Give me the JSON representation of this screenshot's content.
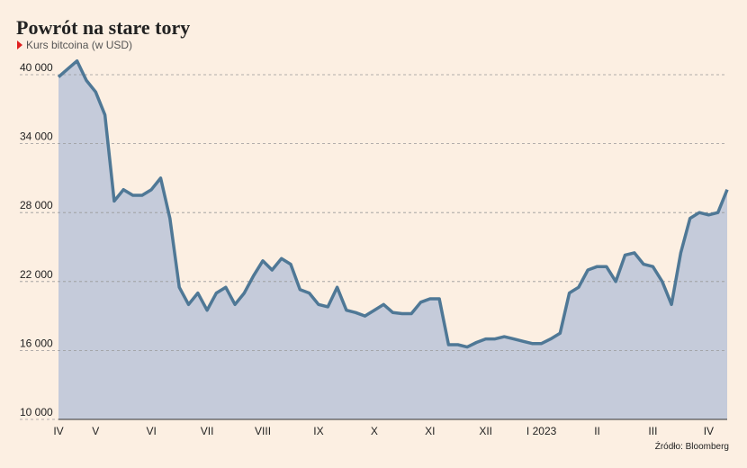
{
  "chart_data": {
    "type": "area",
    "title": "Powrót na stare tory",
    "subtitle": "Kurs bitcoina (w USD)",
    "source": "Źródło: Bloomberg",
    "categories": [
      "IV",
      null,
      null,
      null,
      "V",
      null,
      null,
      null,
      null,
      null,
      "VI",
      null,
      null,
      null,
      null,
      null,
      "VII",
      null,
      null,
      null,
      null,
      null,
      "VIII",
      null,
      null,
      null,
      null,
      null,
      "IX",
      null,
      null,
      null,
      null,
      null,
      "X",
      null,
      null,
      null,
      null,
      null,
      "XI",
      null,
      null,
      null,
      null,
      null,
      "XII",
      null,
      null,
      null,
      null,
      null,
      "I 2023",
      null,
      null,
      null,
      null,
      null,
      "II",
      null,
      null,
      null,
      null,
      null,
      "III",
      null,
      null,
      null,
      null,
      null,
      "IV",
      null,
      null
    ],
    "values": [
      39800,
      40500,
      41200,
      39500,
      38500,
      36500,
      29000,
      30000,
      29500,
      29500,
      30000,
      31000,
      27500,
      21500,
      20000,
      21000,
      19500,
      21000,
      21500,
      20000,
      21000,
      22500,
      23800,
      23000,
      24000,
      23500,
      21300,
      21000,
      20000,
      19800,
      21500,
      19500,
      19300,
      19000,
      19500,
      20000,
      19300,
      19200,
      19200,
      20200,
      20500,
      20500,
      16500,
      16500,
      16300,
      16700,
      17000,
      17000,
      17200,
      17000,
      16800,
      16600,
      16600,
      17000,
      17500,
      21000,
      21500,
      23000,
      23300,
      23300,
      22000,
      24300,
      24500,
      23500,
      23300,
      22000,
      20000,
      24500,
      27500,
      28000,
      27800,
      28000,
      30000
    ],
    "color": "#4f7896",
    "fill": "#c5cbda",
    "ylim": [
      10000,
      40000
    ],
    "yticks": [
      {
        "value": 10000,
        "label": "10 000"
      },
      {
        "value": 16000,
        "label": "16 000"
      },
      {
        "value": 22000,
        "label": "22 000"
      },
      {
        "value": 28000,
        "label": "28 000"
      },
      {
        "value": 34000,
        "label": "34 000"
      },
      {
        "value": 40000,
        "label": "40 000"
      }
    ],
    "grid": true
  }
}
